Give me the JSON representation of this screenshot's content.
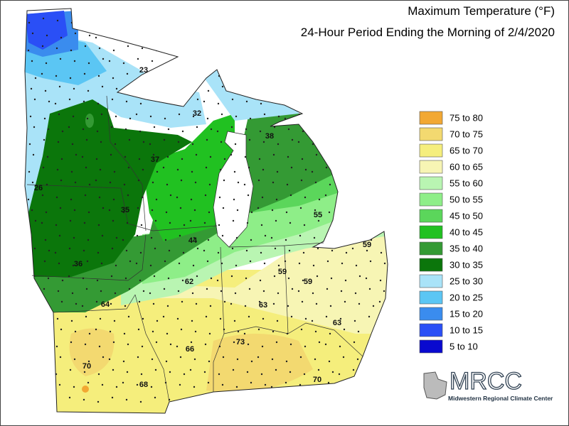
{
  "title": "Maximum Temperature (°F)",
  "subtitle": "24-Hour Period Ending the Morning of 2/4/2020",
  "legend": [
    {
      "label": "75 to 80",
      "color": "#f2a833"
    },
    {
      "label": "70 to 75",
      "color": "#f3d970"
    },
    {
      "label": "65 to 70",
      "color": "#f5ee7c"
    },
    {
      "label": "60 to 65",
      "color": "#f7f5b4"
    },
    {
      "label": "55 to 60",
      "color": "#b9f5b2"
    },
    {
      "label": "50 to 55",
      "color": "#8eee88"
    },
    {
      "label": "45 to 50",
      "color": "#5bd65b"
    },
    {
      "label": "40 to 45",
      "color": "#21c121"
    },
    {
      "label": "35 to 40",
      "color": "#349a34"
    },
    {
      "label": "30 to 35",
      "color": "#0b760b"
    },
    {
      "label": "25 to 30",
      "color": "#a9e3f8"
    },
    {
      "label": "20 to 25",
      "color": "#5bc6f4"
    },
    {
      "label": "15 to 20",
      "color": "#3a8cee"
    },
    {
      "label": "10 to 15",
      "color": "#2a4ff6"
    },
    {
      "label": "5 to 10",
      "color": "#0909cf"
    }
  ],
  "stations": [
    23,
    32,
    38,
    37,
    26,
    35,
    55,
    44,
    59,
    36,
    59,
    59,
    62,
    64,
    63,
    63,
    73,
    66,
    70,
    70,
    68
  ],
  "logo": {
    "name": "MRCC",
    "full_name": "Midwestern Regional Climate Center"
  }
}
